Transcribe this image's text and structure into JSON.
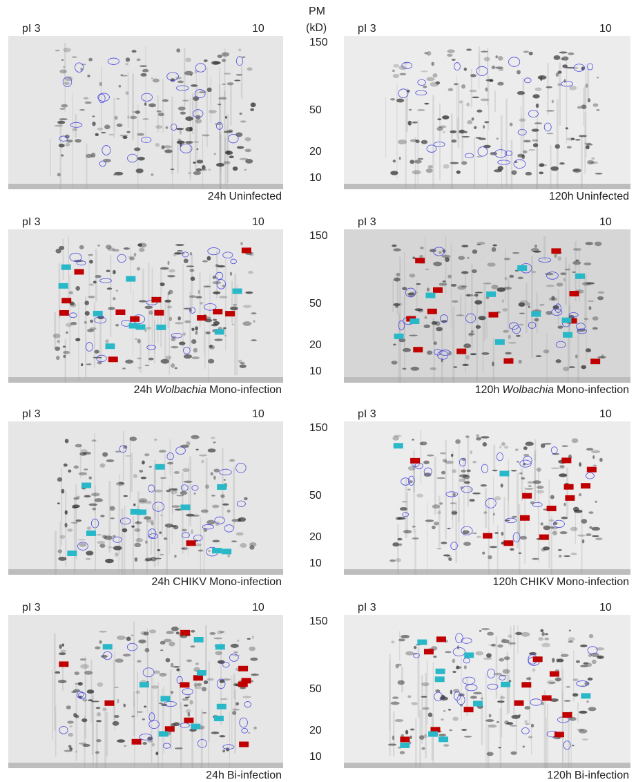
{
  "axis_title": {
    "line1": "PM",
    "line2": "(kD)"
  },
  "rows": [
    {
      "mw_labels": [
        "150",
        "50",
        "20",
        "10"
      ],
      "panels": [
        {
          "pi_start": "pI 3",
          "pi_end": "10",
          "caption": [
            {
              "text": "24h"
            },
            {
              "text": "Uninfected"
            }
          ]
        },
        {
          "pi_start": "pI 3",
          "pi_end": "10",
          "caption": [
            {
              "text": "120h"
            },
            {
              "text": "Uninfected"
            }
          ]
        }
      ]
    },
    {
      "mw_labels": [
        "150",
        "50",
        "20",
        "10"
      ],
      "panels": [
        {
          "pi_start": "pI 3",
          "pi_end": "10",
          "caption": [
            {
              "text": "24h"
            },
            {
              "text": "Wolbachia",
              "italic": true
            },
            {
              "text": "Mono-infection"
            }
          ]
        },
        {
          "pi_start": "pI 3",
          "pi_end": "10",
          "caption": [
            {
              "text": "120h"
            },
            {
              "text": "Wolbachia",
              "italic": true
            },
            {
              "text": "Mono-infection"
            }
          ]
        }
      ]
    },
    {
      "mw_labels": [
        "150",
        "50",
        "20",
        "10"
      ],
      "panels": [
        {
          "pi_start": "pI 3",
          "pi_end": "10",
          "caption": [
            {
              "text": "24h"
            },
            {
              "text": "CHIKV"
            },
            {
              "text": "Mono-infection"
            }
          ]
        },
        {
          "pi_start": "pI 3",
          "pi_end": "10",
          "caption": [
            {
              "text": "120h"
            },
            {
              "text": "CHIKV"
            },
            {
              "text": "Mono-infection"
            }
          ]
        }
      ]
    },
    {
      "mw_labels": [
        "150",
        "50",
        "20",
        "10"
      ],
      "panels": [
        {
          "pi_start": "pI 3",
          "pi_end": "10",
          "caption": [
            {
              "text": "24h"
            },
            {
              "text": "Bi-infection"
            }
          ]
        },
        {
          "pi_start": "pI 3",
          "pi_end": "10",
          "caption": [
            {
              "text": "120h"
            },
            {
              "text": "Bi-infection"
            }
          ]
        }
      ]
    }
  ]
}
